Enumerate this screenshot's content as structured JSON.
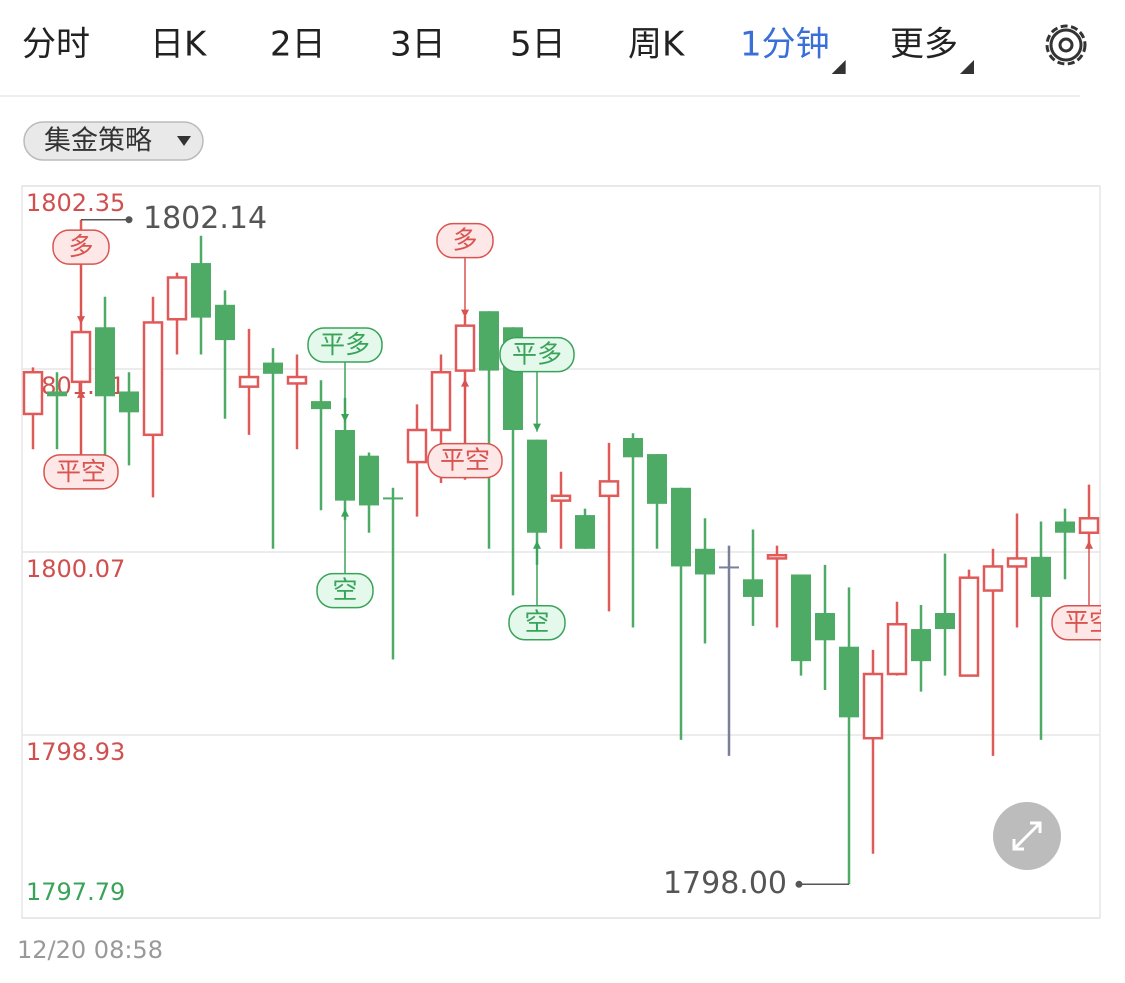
{
  "tabs": [
    {
      "label": "分时"
    },
    {
      "label": "日K"
    },
    {
      "label": "2日"
    },
    {
      "label": "3日"
    },
    {
      "label": "5日"
    },
    {
      "label": "周K"
    },
    {
      "label": "1分钟",
      "active": true,
      "dropdown": true
    },
    {
      "label": "更多",
      "dropdown": true
    }
  ],
  "strategy_button": "集金策略",
  "timestamp": "12/20 08:58",
  "chart_data": {
    "type": "candlestick",
    "up_color": "#e05a5a",
    "down_color": "#4dab66",
    "flat_color": "#7a7f9a",
    "ylim": [
      1797.79,
      1802.35
    ],
    "yticks": [
      1802.35,
      1801.21,
      1800.07,
      1798.93,
      1797.79
    ],
    "grid": true,
    "open": [
      1800.93,
      1801.07,
      1801.13,
      1801.47,
      1801.07,
      1800.8,
      1801.52,
      1801.87,
      1801.61,
      1801.1,
      1801.25,
      1801.12,
      1801.01,
      1800.83,
      1800.67,
      1800.41,
      1800.63,
      1800.83,
      1801.2,
      1801.57,
      1801.47,
      1800.77,
      1800.39,
      1800.3,
      1800.42,
      1800.78,
      1800.68,
      1800.47,
      1800.09,
      1799.98,
      1799.9,
      1800.03,
      1799.93,
      1799.69,
      1799.48,
      1798.91,
      1799.31,
      1799.59,
      1799.69,
      1799.3,
      1799.83,
      1799.98,
      1800.04,
      1800.26,
      1800.19
    ],
    "high": [
      1801.22,
      1801.19,
      1802.14,
      1801.66,
      1801.19,
      1801.66,
      1801.81,
      1802.04,
      1801.7,
      1801.46,
      1801.34,
      1801.3,
      1801.14,
      1801.03,
      1800.69,
      1800.47,
      1800.99,
      1801.3,
      1801.54,
      1801.57,
      1801.47,
      1800.77,
      1800.57,
      1800.34,
      1800.75,
      1800.81,
      1800.68,
      1800.47,
      1800.28,
      1800.11,
      1800.21,
      1800.11,
      1799.93,
      1799.99,
      1799.85,
      1799.46,
      1799.76,
      1799.74,
      1800.06,
      1799.96,
      1800.09,
      1800.31,
      1800.26,
      1800.34,
      1800.49
    ],
    "low": [
      1800.71,
      1800.71,
      1800.67,
      1800.61,
      1800.61,
      1800.41,
      1801.3,
      1801.3,
      1800.9,
      1800.8,
      1800.09,
      1800.71,
      1800.33,
      1800.27,
      1800.19,
      1799.4,
      1800.29,
      1800.5,
      1800.52,
      1800.09,
      1799.8,
      1799.99,
      1800.09,
      1800.09,
      1799.7,
      1799.6,
      1800.09,
      1798.9,
      1799.5,
      1798.8,
      1799.61,
      1799.6,
      1799.3,
      1799.21,
      1798.0,
      1798.19,
      1799.3,
      1799.2,
      1799.3,
      1799.3,
      1798.8,
      1799.6,
      1798.9,
      1799.9,
      1800.09
    ],
    "close": [
      1801.19,
      1801.04,
      1801.44,
      1801.04,
      1800.94,
      1801.5,
      1801.78,
      1801.53,
      1801.39,
      1801.16,
      1801.18,
      1801.16,
      1800.96,
      1800.39,
      1800.36,
      1800.4,
      1800.83,
      1801.19,
      1801.48,
      1801.2,
      1800.83,
      1800.19,
      1800.42,
      1800.09,
      1800.51,
      1800.66,
      1800.37,
      1799.98,
      1799.93,
      1799.98,
      1799.79,
      1800.05,
      1799.39,
      1799.52,
      1799.04,
      1799.31,
      1799.62,
      1799.39,
      1799.59,
      1799.91,
      1799.98,
      1800.03,
      1799.79,
      1800.19,
      1800.28
    ],
    "max_label": {
      "value": 1802.14,
      "label": "1802.14"
    },
    "min_label": {
      "value": 1798,
      "label": "1798.00"
    },
    "signals": [
      {
        "label": "多",
        "candle": 2,
        "position": "above",
        "color": "red"
      },
      {
        "label": "平空",
        "candle": 2,
        "position": "below",
        "color": "red"
      },
      {
        "label": "平多",
        "candle": 13,
        "position": "above",
        "color": "green"
      },
      {
        "label": "空",
        "candle": 13,
        "position": "below",
        "color": "green"
      },
      {
        "label": "多",
        "candle": 18,
        "position": "above",
        "color": "red"
      },
      {
        "label": "平空",
        "candle": 18,
        "position": "below",
        "color": "red"
      },
      {
        "label": "平多",
        "candle": 21,
        "position": "above",
        "color": "green"
      },
      {
        "label": "空",
        "candle": 21,
        "position": "below",
        "color": "green"
      },
      {
        "label": "平空",
        "candle": 44,
        "position": "below",
        "color": "red"
      }
    ]
  }
}
